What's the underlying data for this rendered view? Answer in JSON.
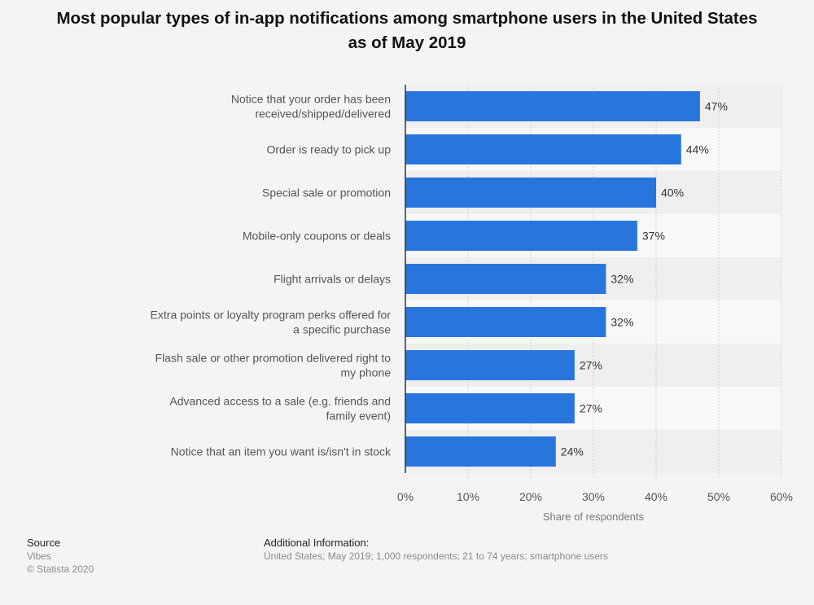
{
  "chart_data": {
    "type": "bar",
    "orientation": "horizontal",
    "title": "Most popular types of in-app notifications among smartphone users in the United States as of May 2019",
    "categories": [
      [
        "Notice that your order has been",
        "received/shipped/delivered"
      ],
      [
        "Order is ready to pick up"
      ],
      [
        "Special sale or promotion"
      ],
      [
        "Mobile-only coupons or deals"
      ],
      [
        "Flight arrivals or delays"
      ],
      [
        "Extra points or loyalty program perks offered for",
        "a specific purchase"
      ],
      [
        "Flash sale or other promotion delivered right to",
        "my phone"
      ],
      [
        "Advanced access to a sale (e.g. friends and",
        "family event)"
      ],
      [
        "Notice that an item you want is/isn't in stock"
      ]
    ],
    "values": [
      47,
      44,
      40,
      37,
      32,
      32,
      27,
      27,
      24
    ],
    "value_labels": [
      "47%",
      "44%",
      "40%",
      "37%",
      "32%",
      "32%",
      "27%",
      "27%",
      "24%"
    ],
    "xlabel": "Share of respondents",
    "xlim": [
      0,
      60
    ],
    "xticks": [
      "0%",
      "10%",
      "20%",
      "30%",
      "40%",
      "50%",
      "60%"
    ],
    "grid": true,
    "bar_color": "#2876dd"
  },
  "footer": {
    "source_heading": "Source",
    "source_name": "Vibes",
    "copyright": "© Statista 2020",
    "info_heading": "Additional Information:",
    "info_text": "United States; May 2019; 1,000 respondents; 21 to 74 years; smartphone users"
  }
}
